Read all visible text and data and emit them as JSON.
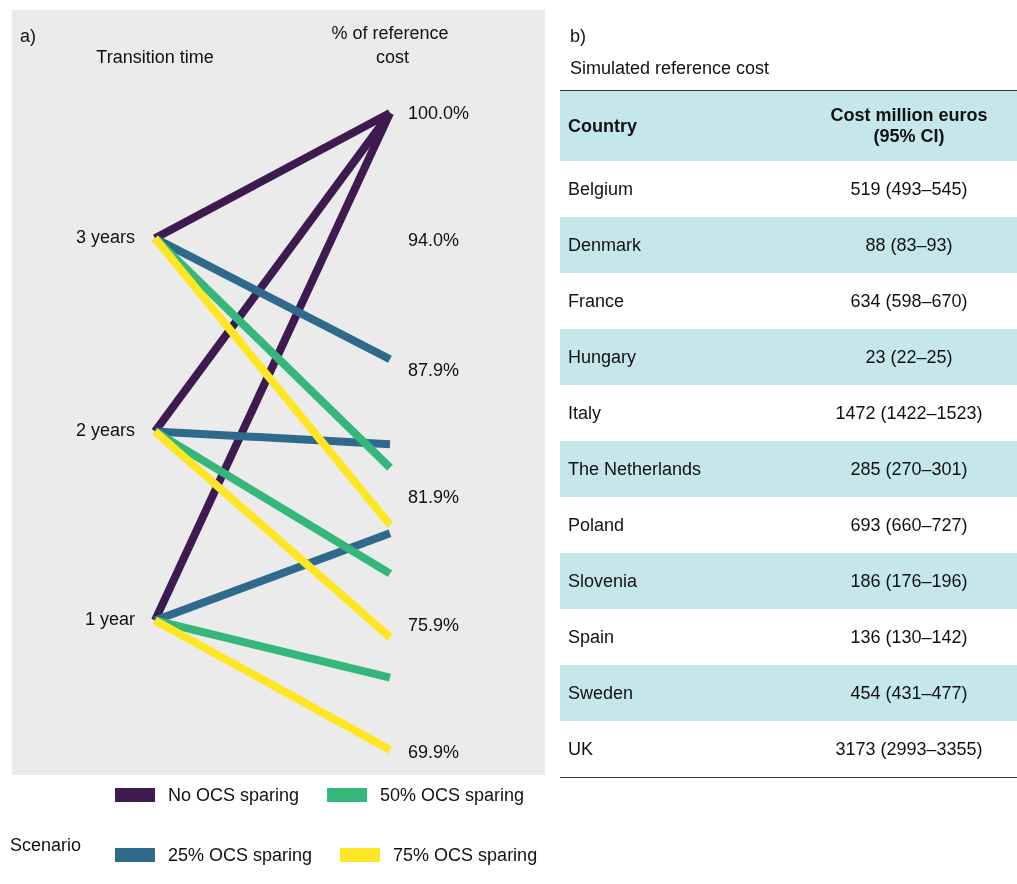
{
  "chart_data": [
    {
      "type": "line",
      "legend_title": "Scenario",
      "legend": "bottom",
      "marker": "none",
      "line_style": "solid",
      "annotations": [
        "a)",
        "3 years",
        "2 years",
        "1 year"
      ],
      "categories": [
        "Transition time",
        "% of reference cost"
      ],
      "ylim": [
        69.9,
        100
      ],
      "yticks": [
        {
          "value": 100,
          "label": "100.0%"
        },
        {
          "value": 94,
          "label": "94.0%"
        },
        {
          "value": 87.9,
          "label": "87.9%"
        },
        {
          "value": 81.9,
          "label": "81.9%"
        },
        {
          "value": 75.9,
          "label": "75.9%"
        },
        {
          "value": 69.9,
          "label": "69.9%"
        }
      ],
      "series": [
        {
          "name": "No OCS sparing",
          "color": "#3d1a50",
          "values": [
            94.1,
            100
          ]
        },
        {
          "color": "#3d1a50",
          "values": [
            85.0,
            100
          ]
        },
        {
          "color": "#3d1a50",
          "values": [
            76.1,
            100
          ]
        },
        {
          "name": "25% OCS sparing",
          "color": "#2f6a8d",
          "values": [
            94.1,
            88.4
          ]
        },
        {
          "color": "#2f6a8d",
          "values": [
            85.0,
            84.4
          ]
        },
        {
          "color": "#2f6a8d",
          "values": [
            76.1,
            80.2
          ]
        },
        {
          "name": "50% OCS sparing",
          "color": "#35b779",
          "values": [
            94.1,
            83.3
          ]
        },
        {
          "color": "#35b779",
          "values": [
            85.0,
            78.3
          ]
        },
        {
          "color": "#35b779",
          "values": [
            76.1,
            73.4
          ]
        },
        {
          "name": "75% OCS sparing",
          "color": "#fde725",
          "values": [
            94.1,
            80.6
          ]
        },
        {
          "color": "#fde725",
          "values": [
            85.0,
            75.3
          ]
        },
        {
          "color": "#fde725",
          "values": [
            76.1,
            70.0
          ]
        }
      ]
    },
    {
      "type": "other",
      "title": "b)",
      "subtitle": "Simulated reference cost",
      "categories": [
        "Country",
        "Cost million euros (95% CI)"
      ],
      "y_categories": [
        "Belgium",
        "Denmark",
        "France",
        "Hungary",
        "Italy",
        "The Netherlands",
        "Poland",
        "Slovenia",
        "Spain",
        "Sweden",
        "UK"
      ],
      "cell_labels": [
        [
          "519 (493–545)"
        ],
        [
          "88 (83–93)"
        ],
        [
          "634 (598–670)"
        ],
        [
          "23 (22–25)"
        ],
        [
          "1472 (1422–1523)"
        ],
        [
          "285 (270–301)"
        ],
        [
          "693 (660–727)"
        ],
        [
          "186 (176–196)"
        ],
        [
          "136 (130–142)"
        ],
        [
          "454 (431–477)"
        ],
        [
          "3173 (2993–3355)"
        ]
      ]
    }
  ]
}
